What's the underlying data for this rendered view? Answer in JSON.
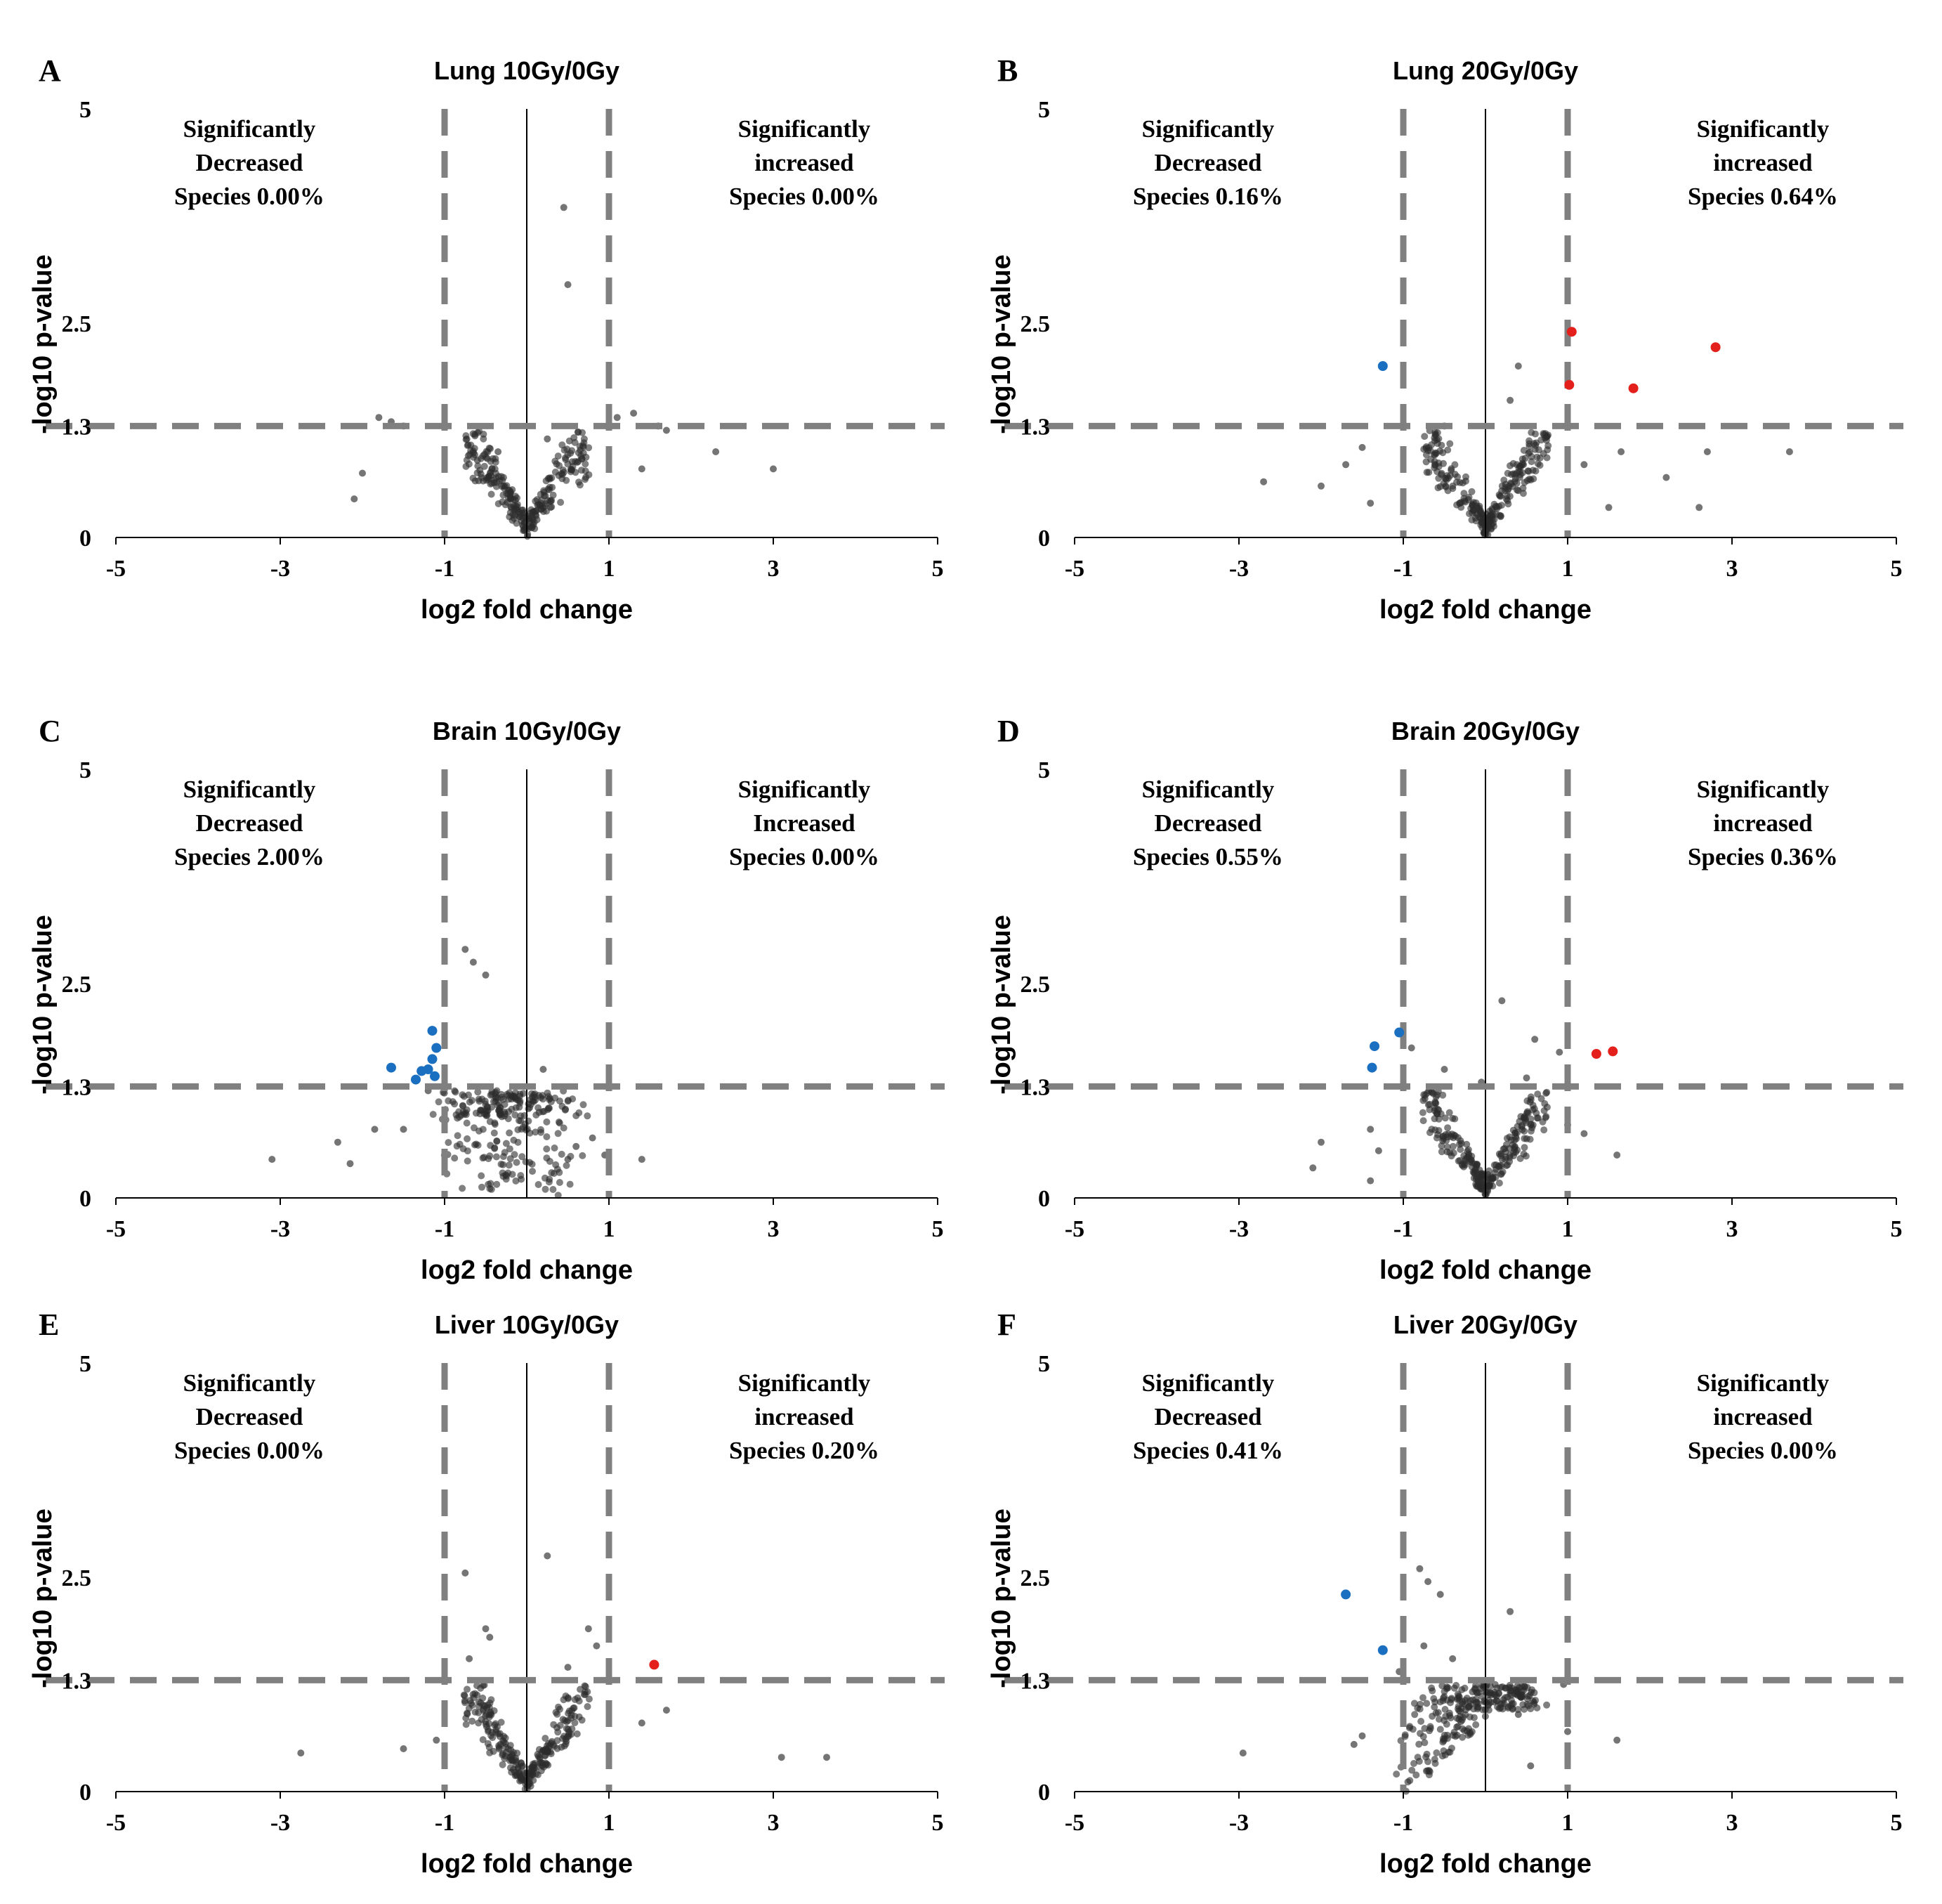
{
  "chart_data": [
    {
      "type": "scatter",
      "letter": "A",
      "title": "Lung 10Gy/0Gy",
      "xlabel": "log2 fold change",
      "ylabel": "-log10 p-value",
      "xlim": [
        -5,
        5
      ],
      "ylim": [
        0,
        5
      ],
      "xticks": [
        "-5",
        "-3",
        "-1",
        "1",
        "3",
        "5"
      ],
      "yticks": [
        "0",
        "1.3",
        "2.5",
        "5"
      ],
      "thresholds": {
        "x": [
          -1,
          1
        ],
        "y": 1.3
      },
      "decreased": {
        "lines": [
          "Significantly",
          "Decreased",
          "Species 0.00%"
        ]
      },
      "increased": {
        "lines": [
          "Significantly",
          "increased",
          "Species 0.00%"
        ]
      },
      "series": [
        {
          "role": "significant-decreased",
          "color": "#1a6fc0",
          "points": []
        },
        {
          "role": "significant-increased",
          "color": "#e3201b",
          "points": []
        }
      ],
      "background_points": {
        "color": "#2b2b2b",
        "description_points": [
          [
            0.45,
            3.85
          ],
          [
            0.5,
            2.95
          ],
          [
            -1.8,
            1.4
          ],
          [
            -1.65,
            1.35
          ],
          [
            -1.5,
            1.3
          ],
          [
            -2.0,
            0.75
          ],
          [
            -2.1,
            0.45
          ],
          [
            1.1,
            1.4
          ],
          [
            1.3,
            1.45
          ],
          [
            1.6,
            1.3
          ],
          [
            1.7,
            1.25
          ],
          [
            1.4,
            0.8
          ],
          [
            3.0,
            0.8
          ],
          [
            2.3,
            1.0
          ],
          [
            0.25,
            1.15
          ],
          [
            -0.35,
            1.0
          ],
          [
            -0.6,
            0.9
          ]
        ]
      }
    },
    {
      "type": "scatter",
      "letter": "B",
      "title": "Lung 20Gy/0Gy",
      "xlabel": "log2 fold change",
      "ylabel": "-log10 p-value",
      "xlim": [
        -5,
        5
      ],
      "ylim": [
        0,
        5
      ],
      "xticks": [
        "-5",
        "-3",
        "-1",
        "1",
        "3",
        "5"
      ],
      "yticks": [
        "0",
        "1.3",
        "2.5",
        "5"
      ],
      "thresholds": {
        "x": [
          -1,
          1
        ],
        "y": 1.3
      },
      "decreased": {
        "lines": [
          "Significantly",
          "Decreased",
          "Species 0.16%"
        ]
      },
      "increased": {
        "lines": [
          "Significantly",
          "increased",
          "Species 0.64%"
        ]
      },
      "series": [
        {
          "role": "significant-decreased",
          "color": "#1a6fc0",
          "points": [
            [
              -1.25,
              2.0
            ]
          ]
        },
        {
          "role": "significant-increased",
          "color": "#e3201b",
          "points": [
            [
              1.05,
              2.4
            ],
            [
              1.02,
              1.78
            ],
            [
              1.8,
              1.74
            ],
            [
              2.8,
              2.22
            ]
          ]
        }
      ],
      "background_points": {
        "color": "#2b2b2b",
        "description_points": [
          [
            0.4,
            2.0
          ],
          [
            0.3,
            1.6
          ],
          [
            -2.7,
            0.65
          ],
          [
            -2.0,
            0.6
          ],
          [
            -1.7,
            0.85
          ],
          [
            -1.5,
            1.05
          ],
          [
            -0.5,
            1.3
          ],
          [
            3.7,
            1.0
          ],
          [
            2.7,
            1.0
          ],
          [
            2.2,
            0.7
          ],
          [
            2.6,
            0.35
          ],
          [
            1.5,
            0.35
          ],
          [
            1.65,
            1.0
          ],
          [
            1.2,
            0.85
          ],
          [
            -1.4,
            0.4
          ]
        ]
      }
    },
    {
      "type": "scatter",
      "letter": "C",
      "title": "Brain 10Gy/0Gy",
      "xlabel": "log2 fold change",
      "ylabel": "-log10 p-value",
      "xlim": [
        -5,
        5
      ],
      "ylim": [
        0,
        5
      ],
      "xticks": [
        "-5",
        "-3",
        "-1",
        "1",
        "3",
        "5"
      ],
      "yticks": [
        "0",
        "1.3",
        "2.5",
        "5"
      ],
      "thresholds": {
        "x": [
          -1,
          1
        ],
        "y": 1.3
      },
      "decreased": {
        "lines": [
          "Significantly",
          "Decreased",
          "Species 2.00%"
        ]
      },
      "increased": {
        "lines": [
          "Significantly",
          "Increased",
          "Species 0.00%"
        ]
      },
      "series": [
        {
          "role": "significant-decreased",
          "color": "#1a6fc0",
          "points": [
            [
              -1.65,
              1.52
            ],
            [
              -1.35,
              1.38
            ],
            [
              -1.28,
              1.48
            ],
            [
              -1.2,
              1.5
            ],
            [
              -1.12,
              1.42
            ],
            [
              -1.15,
              1.62
            ],
            [
              -1.1,
              1.75
            ],
            [
              -1.15,
              1.95
            ]
          ]
        },
        {
          "role": "significant-increased",
          "color": "#e3201b",
          "points": []
        }
      ],
      "background_points": {
        "color": "#2b2b2b",
        "description_points": [
          [
            -0.75,
            2.9
          ],
          [
            -0.65,
            2.75
          ],
          [
            -0.5,
            2.6
          ],
          [
            -3.1,
            0.45
          ],
          [
            -2.3,
            0.65
          ],
          [
            -2.15,
            0.4
          ],
          [
            -1.85,
            0.8
          ],
          [
            0.2,
            1.5
          ],
          [
            0.5,
            0.45
          ],
          [
            0.8,
            0.7
          ],
          [
            1.4,
            0.45
          ],
          [
            0.6,
            0.6
          ],
          [
            0.95,
            0.5
          ],
          [
            -1.5,
            0.8
          ],
          [
            -1.2,
            1.25
          ]
        ]
      }
    },
    {
      "type": "scatter",
      "letter": "D",
      "title": "Brain 20Gy/0Gy",
      "xlabel": "log2 fold change",
      "ylabel": "-log10 p-value",
      "xlim": [
        -5,
        5
      ],
      "ylim": [
        0,
        5
      ],
      "xticks": [
        "-5",
        "-3",
        "-1",
        "1",
        "3",
        "5"
      ],
      "yticks": [
        "0",
        "1.3",
        "2.5",
        "5"
      ],
      "thresholds": {
        "x": [
          -1,
          1
        ],
        "y": 1.3
      },
      "decreased": {
        "lines": [
          "Significantly",
          "Decreased",
          "Species 0.55%"
        ]
      },
      "increased": {
        "lines": [
          "Significantly",
          "increased",
          "Species 0.36%"
        ]
      },
      "series": [
        {
          "role": "significant-decreased",
          "color": "#1a6fc0",
          "points": [
            [
              -1.35,
              1.77
            ],
            [
              -1.05,
              1.93
            ],
            [
              -1.38,
              1.52
            ]
          ]
        },
        {
          "role": "significant-increased",
          "color": "#e3201b",
          "points": [
            [
              1.35,
              1.68
            ],
            [
              1.55,
              1.71
            ]
          ]
        }
      ],
      "background_points": {
        "color": "#2b2b2b",
        "description_points": [
          [
            0.2,
            2.3
          ],
          [
            -2.1,
            0.35
          ],
          [
            -2.0,
            0.65
          ],
          [
            -1.4,
            0.8
          ],
          [
            -1.3,
            0.55
          ],
          [
            -1.4,
            0.2
          ],
          [
            -0.5,
            1.5
          ],
          [
            0.6,
            1.85
          ],
          [
            0.9,
            1.7
          ],
          [
            1.6,
            0.5
          ],
          [
            1.0,
            0.85
          ],
          [
            1.2,
            0.75
          ],
          [
            0.5,
            1.4
          ],
          [
            -0.9,
            1.75
          ],
          [
            -0.05,
            1.35
          ]
        ]
      }
    },
    {
      "type": "scatter",
      "letter": "E",
      "title": "Liver 10Gy/0Gy",
      "xlabel": "log2 fold change",
      "ylabel": "-log10 p-value",
      "xlim": [
        -5,
        5
      ],
      "ylim": [
        0,
        5
      ],
      "xticks": [
        "-5",
        "-3",
        "-1",
        "1",
        "3",
        "5"
      ],
      "yticks": [
        "0",
        "1.3",
        "2.5",
        "5"
      ],
      "thresholds": {
        "x": [
          -1,
          1
        ],
        "y": 1.3
      },
      "decreased": {
        "lines": [
          "Significantly",
          "Decreased",
          "Species 0.00%"
        ]
      },
      "increased": {
        "lines": [
          "Significantly",
          "increased",
          "Species 0.20%"
        ]
      },
      "series": [
        {
          "role": "significant-decreased",
          "color": "#1a6fc0",
          "points": []
        },
        {
          "role": "significant-increased",
          "color": "#e3201b",
          "points": [
            [
              1.55,
              1.48
            ]
          ]
        }
      ],
      "background_points": {
        "color": "#2b2b2b",
        "description_points": [
          [
            -0.75,
            2.55
          ],
          [
            0.25,
            2.75
          ],
          [
            -0.5,
            1.9
          ],
          [
            -0.45,
            1.8
          ],
          [
            0.75,
            1.9
          ],
          [
            0.85,
            1.7
          ],
          [
            -2.75,
            0.45
          ],
          [
            -1.5,
            0.5
          ],
          [
            1.4,
            0.8
          ],
          [
            1.7,
            0.95
          ],
          [
            3.1,
            0.4
          ],
          [
            3.65,
            0.4
          ],
          [
            -0.7,
            1.55
          ],
          [
            0.5,
            1.45
          ],
          [
            -1.1,
            0.6
          ]
        ]
      }
    },
    {
      "type": "scatter",
      "letter": "F",
      "title": "Liver 20Gy/0Gy",
      "xlabel": "log2 fold change",
      "ylabel": "-log10 p-value",
      "xlim": [
        -5,
        5
      ],
      "ylim": [
        0,
        5
      ],
      "xticks": [
        "-5",
        "-3",
        "-1",
        "1",
        "3",
        "5"
      ],
      "yticks": [
        "0",
        "1.3",
        "2.5",
        "5"
      ],
      "thresholds": {
        "x": [
          -1,
          1
        ],
        "y": 1.3
      },
      "decreased": {
        "lines": [
          "Significantly",
          "Decreased",
          "Species 0.41%"
        ]
      },
      "increased": {
        "lines": [
          "Significantly",
          "increased",
          "Species 0.00%"
        ]
      },
      "series": [
        {
          "role": "significant-decreased",
          "color": "#1a6fc0",
          "points": [
            [
              -1.7,
              2.3
            ],
            [
              -1.25,
              1.65
            ]
          ]
        },
        {
          "role": "significant-increased",
          "color": "#e3201b",
          "points": []
        }
      ],
      "background_points": {
        "color": "#2b2b2b",
        "description_points": [
          [
            -0.8,
            2.6
          ],
          [
            -0.7,
            2.45
          ],
          [
            -0.55,
            2.3
          ],
          [
            0.3,
            2.1
          ],
          [
            -2.95,
            0.45
          ],
          [
            -1.6,
            0.55
          ],
          [
            -1.5,
            0.65
          ],
          [
            1.6,
            0.6
          ],
          [
            1.0,
            0.7
          ],
          [
            0.95,
            1.25
          ],
          [
            -0.75,
            1.7
          ],
          [
            -0.4,
            1.55
          ],
          [
            -1.05,
            1.4
          ],
          [
            0.4,
            0.9
          ],
          [
            0.55,
            0.3
          ]
        ]
      }
    }
  ]
}
